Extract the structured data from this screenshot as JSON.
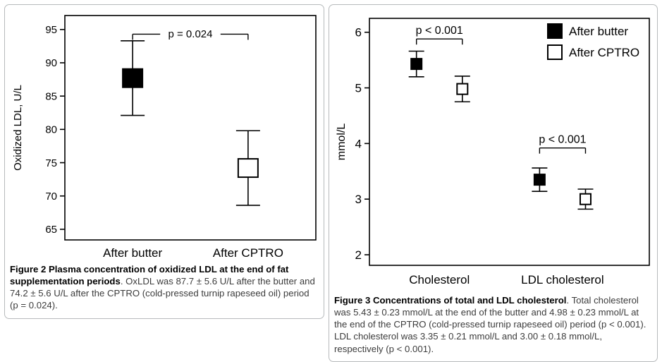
{
  "figure2": {
    "caption_bold": "Figure 2 Plasma concentration of oxidized LDL at the end of fat supplementation periods",
    "caption_rest": ". OxLDL was 87.7 ± 5.6 U/L after the butter and 74.2 ± 5.6 U/L after the CPTRO (cold-pressed turnip rapeseed oil) period (p = 0.024)."
  },
  "figure3": {
    "caption_bold": "Figure 3 Concentrations of total and LDL cholesterol",
    "caption_rest": ". Total cholesterol was 5.43 ± 0.23 mmol/L at the end of the butter and 4.98 ± 0.23 mmol/L at the end of the CPTRO (cold-pressed turnip rapeseed oil) period (p < 0.001). LDL cholesterol was 3.35 ± 0.21 mmol/L and 3.00 ± 0.18 mmol/L, respectively (p < 0.001)."
  },
  "chart_data": [
    {
      "type": "scatter",
      "title": "",
      "ylabel": "Oxidized LDL, U/L",
      "xlabel": "",
      "ylim": [
        63.4,
        97.1
      ],
      "yticks": [
        65,
        70,
        75,
        80,
        85,
        90,
        95
      ],
      "grid": false,
      "categories": [
        "After butter",
        "After CPTRO"
      ],
      "points": [
        {
          "category": 0,
          "series": "After butter",
          "marker": "filled",
          "mean": 87.7,
          "sd": 5.6,
          "lo": 82.1,
          "hi": 93.3
        },
        {
          "category": 1,
          "series": "After CPTRO",
          "marker": "open",
          "mean": 74.2,
          "sd": 5.6,
          "lo": 68.6,
          "hi": 79.8
        }
      ],
      "significance": [
        {
          "label": "p = 0.024",
          "between": [
            0,
            1
          ],
          "y": 94.3,
          "label_position": "on-line"
        }
      ],
      "legend": null
    },
    {
      "type": "scatter",
      "title": "",
      "ylabel": "mmol/L",
      "xlabel": "",
      "ylim": [
        1.81,
        6.25
      ],
      "yticks": [
        2,
        3,
        4,
        5,
        6
      ],
      "grid": false,
      "categories": [
        "Cholesterol",
        "LDL cholesterol"
      ],
      "points": [
        {
          "category": 0,
          "series": "After butter",
          "marker": "filled",
          "mean": 5.43,
          "sd": 0.23,
          "lo": 5.2,
          "hi": 5.66
        },
        {
          "category": 0,
          "series": "After CPTRO",
          "marker": "open",
          "mean": 4.98,
          "sd": 0.23,
          "lo": 4.75,
          "hi": 5.21
        },
        {
          "category": 1,
          "series": "After butter",
          "marker": "filled",
          "mean": 3.35,
          "sd": 0.21,
          "lo": 3.14,
          "hi": 3.56
        },
        {
          "category": 1,
          "series": "After CPTRO",
          "marker": "open",
          "mean": 3.0,
          "sd": 0.18,
          "lo": 2.82,
          "hi": 3.18
        }
      ],
      "significance": [
        {
          "label": "p < 0.001",
          "between": [
            0,
            1
          ],
          "y": 5.88,
          "label_position": "above"
        },
        {
          "label": "p < 0.001",
          "between": [
            2,
            3
          ],
          "y": 3.92,
          "label_position": "above"
        }
      ],
      "legend": {
        "position": "top-right",
        "entries": [
          {
            "label": "After butter",
            "marker": "filled"
          },
          {
            "label": "After CPTRO",
            "marker": "open"
          }
        ]
      }
    }
  ]
}
